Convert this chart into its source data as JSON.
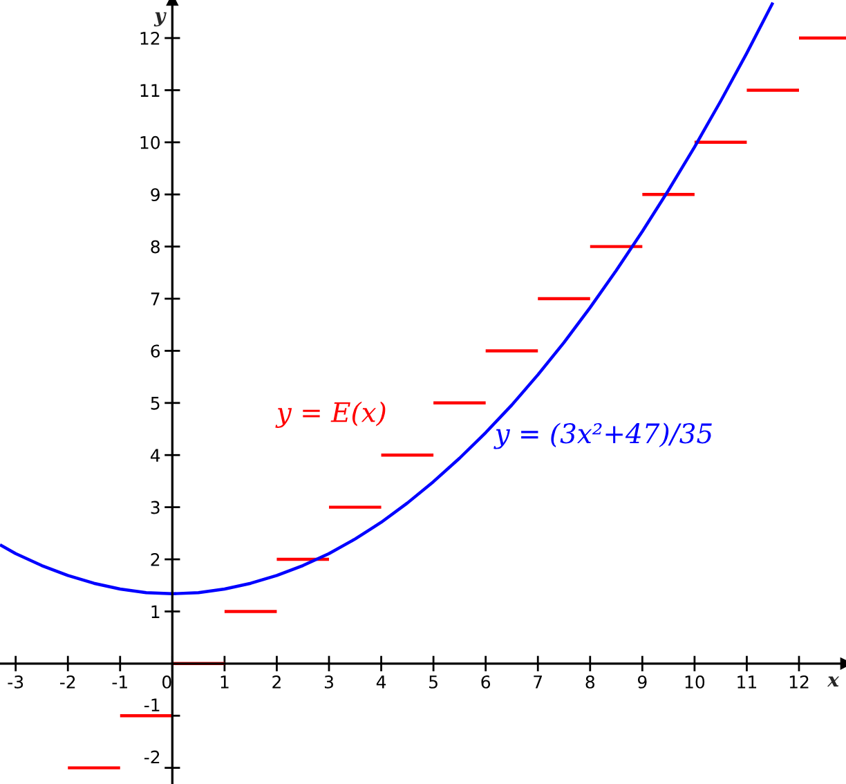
{
  "chart_data": {
    "type": "line",
    "xlabel": "x",
    "ylabel": "y",
    "xlim": [
      -3.3,
      12.9
    ],
    "ylim": [
      -2.31,
      12.73
    ],
    "xticks": [
      -3,
      -2,
      -1,
      0,
      1,
      2,
      3,
      4,
      5,
      6,
      7,
      8,
      9,
      10,
      11,
      12
    ],
    "yticks": [
      -2,
      -1,
      1,
      2,
      3,
      4,
      5,
      6,
      7,
      8,
      9,
      10,
      11,
      12
    ],
    "series": [
      {
        "color": "#ff0000",
        "x": [
          -2,
          -1
        ],
        "values": [
          -2,
          -2
        ]
      },
      {
        "color": "#ff0000",
        "x": [
          -1,
          0
        ],
        "values": [
          -1,
          -1
        ]
      },
      {
        "color": "#ff0000",
        "x": [
          0,
          1
        ],
        "values": [
          0,
          0
        ]
      },
      {
        "color": "#ff0000",
        "x": [
          1,
          2
        ],
        "values": [
          1,
          1
        ]
      },
      {
        "name": "y = E(x)",
        "color": "#ff0000",
        "x": [
          2,
          3
        ],
        "values": [
          2,
          2
        ]
      },
      {
        "color": "#ff0000",
        "x": [
          3,
          4
        ],
        "values": [
          3,
          3
        ]
      },
      {
        "color": "#ff0000",
        "x": [
          4,
          5
        ],
        "values": [
          4,
          4
        ]
      },
      {
        "color": "#ff0000",
        "x": [
          5,
          6
        ],
        "values": [
          5,
          5
        ]
      },
      {
        "color": "#ff0000",
        "x": [
          6,
          7
        ],
        "values": [
          6,
          6
        ]
      },
      {
        "color": "#ff0000",
        "x": [
          7,
          8
        ],
        "values": [
          7,
          7
        ]
      },
      {
        "color": "#ff0000",
        "x": [
          8,
          9
        ],
        "values": [
          8,
          8
        ]
      },
      {
        "color": "#ff0000",
        "x": [
          9,
          10
        ],
        "values": [
          9,
          9
        ]
      },
      {
        "color": "#ff0000",
        "x": [
          10,
          11
        ],
        "values": [
          10,
          10
        ]
      },
      {
        "color": "#ff0000",
        "x": [
          11,
          12
        ],
        "values": [
          11,
          11
        ]
      },
      {
        "color": "#ff0000",
        "x": [
          12,
          12.9
        ],
        "values": [
          12,
          12
        ]
      },
      {
        "name": "y = (3x²+47)/35",
        "color": "#0000ff",
        "x": [
          -3.3,
          -3,
          -2.5,
          -2,
          -1.5,
          -1,
          -0.5,
          0,
          0.5,
          1,
          1.5,
          2,
          2.5,
          3,
          3.5,
          4,
          4.5,
          5,
          5.5,
          6,
          6.5,
          7,
          7.5,
          8,
          8.5,
          9,
          9.5,
          10,
          10.5,
          11,
          11.5
        ],
        "values": [
          2.28,
          2.11,
          1.88,
          1.69,
          1.54,
          1.43,
          1.36,
          1.34,
          1.36,
          1.43,
          1.54,
          1.69,
          1.88,
          2.11,
          2.39,
          2.71,
          3.08,
          3.49,
          3.94,
          4.43,
          4.96,
          5.54,
          6.16,
          6.83,
          7.54,
          8.29,
          9.08,
          9.91,
          10.79,
          11.71,
          12.68
        ]
      }
    ]
  }
}
